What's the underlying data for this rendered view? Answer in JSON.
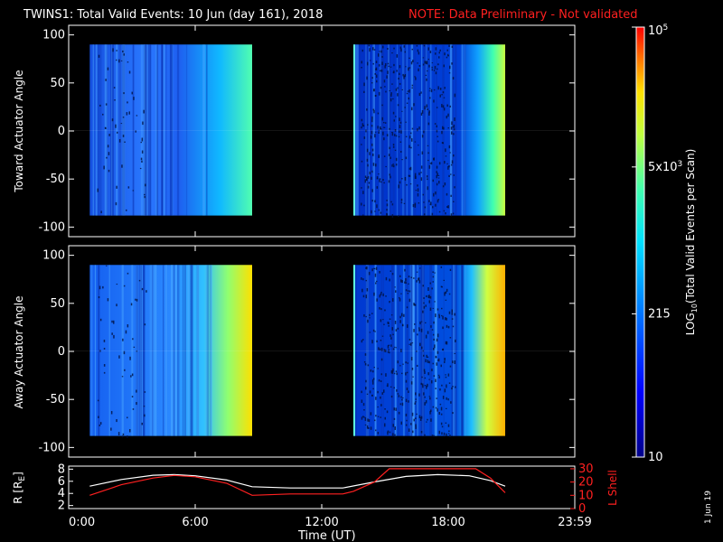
{
  "header": {
    "title": "TWINS1: Total Valid Events: 10 Jun (day 161), 2018",
    "note": "NOTE: Data Preliminary - Not validated",
    "note_color": "#ff2020"
  },
  "side_stamp": "1 Jun 19",
  "chart_data": [
    {
      "type": "heatmap",
      "panel": "top",
      "ylabel": "Toward Actuator Angle",
      "ylim": [
        -110,
        110
      ],
      "yticks": [
        "100",
        "50",
        "0",
        "-50",
        "-100"
      ],
      "ytick_values": [
        100,
        50,
        0,
        -50,
        -100
      ],
      "blocks": [
        {
          "t_start": 1.0,
          "t_end": 8.7,
          "angle_min": -88,
          "angle_max": 90
        },
        {
          "t_start": 13.5,
          "t_end": 20.7,
          "angle_min": -88,
          "angle_max": 90
        }
      ]
    },
    {
      "type": "heatmap",
      "panel": "bottom",
      "ylabel": "Away Actuator Angle",
      "ylim": [
        -110,
        110
      ],
      "yticks": [
        "100",
        "50",
        "0",
        "-50",
        "-100"
      ],
      "ytick_values": [
        100,
        50,
        0,
        -50,
        -100
      ],
      "blocks": [
        {
          "t_start": 1.0,
          "t_end": 8.7,
          "angle_min": -88,
          "angle_max": 90
        },
        {
          "t_start": 13.5,
          "t_end": 20.7,
          "angle_min": -88,
          "angle_max": 90
        }
      ]
    },
    {
      "type": "line",
      "panel": "ephemeris",
      "ylabel_left": "R [R",
      "ylabel_left_sub": "E",
      "ylabel_left_close": "]",
      "ylabel_right": "L Shell",
      "ylim_left": [
        1.5,
        8.5
      ],
      "ylim_right": [
        0,
        32
      ],
      "yticks_left": [
        "8",
        "6",
        "4",
        "2"
      ],
      "yticks_left_values": [
        8,
        6,
        4,
        2
      ],
      "yticks_right": [
        "30",
        "20",
        "10",
        "0"
      ],
      "yticks_right_values": [
        30,
        20,
        10,
        0
      ],
      "series": [
        {
          "color": "#ffffff",
          "axis": "left",
          "x": [
            1.0,
            2.5,
            4.0,
            5.0,
            6.0,
            7.5,
            8.7,
            10.5,
            13.0,
            14.5,
            16.0,
            17.5,
            19.0,
            20.0,
            20.7
          ],
          "y": [
            5.2,
            6.3,
            7.0,
            7.1,
            6.9,
            6.2,
            5.1,
            4.9,
            4.9,
            5.9,
            6.8,
            7.1,
            6.9,
            6.1,
            5.2
          ]
        },
        {
          "color": "#ff2020",
          "axis": "right",
          "x": [
            1.0,
            2.5,
            4.0,
            5.0,
            6.0,
            7.5,
            8.7,
            10.5,
            13.0,
            13.5,
            14.5,
            15.2,
            19.3,
            20.0,
            20.7
          ],
          "y": [
            10,
            18,
            23,
            25,
            24,
            19,
            10,
            11,
            11,
            13,
            20,
            30,
            30,
            23,
            12
          ]
        }
      ]
    }
  ],
  "x_axis": {
    "label": "Time (UT)",
    "xlim": [
      0,
      24
    ],
    "ticks": [
      "0:00",
      "6:00",
      "12:00",
      "18:00",
      "23:59"
    ],
    "tick_values": [
      0,
      6,
      12,
      18,
      24
    ]
  },
  "colorbar": {
    "label": "LOG",
    "label_sub": "10",
    "label_rest": "(Total Valid Events per Scan)",
    "ticks": [
      {
        "base": "10",
        "sup": "5",
        "value": 100000
      },
      {
        "base": "5x10",
        "sup": "3",
        "value": 5000
      },
      {
        "base": "215",
        "sup": "",
        "value": 215
      },
      {
        "base": "10",
        "sup": "",
        "value": 10
      }
    ],
    "range": [
      10,
      100000
    ]
  }
}
